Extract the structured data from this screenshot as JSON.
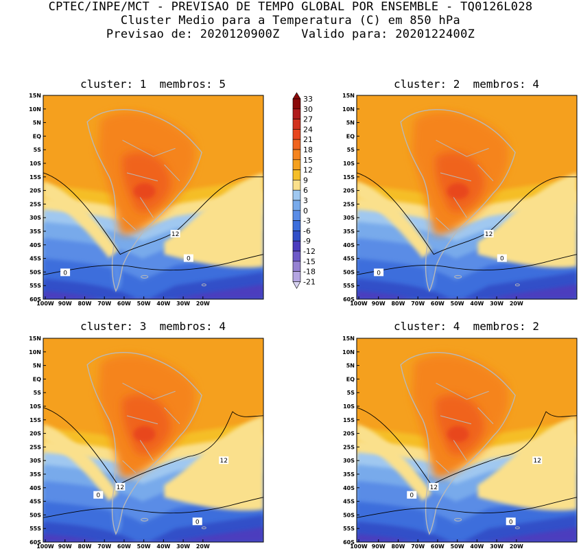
{
  "header": {
    "line1": "CPTEC/INPE/MCT - PREVISAO DE TEMPO GLOBAL POR ENSEMBLE - TQ0126L028",
    "line2": "Cluster Medio para a Temperatura (C) em 850 hPa",
    "line3": "Previsao de: 2020120900Z   Valido para: 2020122400Z"
  },
  "panels": [
    {
      "title": "cluster: 1  membros: 5",
      "contour_labels": [
        "12",
        "0",
        "0"
      ]
    },
    {
      "title": "cluster: 2  membros: 4",
      "contour_labels": [
        "12",
        "0",
        "0"
      ]
    },
    {
      "title": "cluster: 3  membros: 4",
      "contour_labels": [
        "12",
        "12",
        "0",
        "0"
      ]
    },
    {
      "title": "cluster: 4  membros: 2",
      "contour_labels": [
        "12",
        "12",
        "0",
        "0"
      ]
    }
  ],
  "lat_labels": [
    "15N",
    "10N",
    "5N",
    "EQ",
    "5S",
    "10S",
    "15S",
    "20S",
    "25S",
    "30S",
    "35S",
    "40S",
    "45S",
    "50S",
    "55S",
    "60S"
  ],
  "lon_labels": [
    "100W",
    "90W",
    "80W",
    "70W",
    "60W",
    "50W",
    "40W",
    "30W",
    "20W"
  ],
  "colorbar": {
    "labels": [
      "33",
      "30",
      "27",
      "24",
      "21",
      "18",
      "15",
      "12",
      "9",
      "6",
      "3",
      "0",
      "-3",
      "-6",
      "-9",
      "-12",
      "-15",
      "-18",
      "-21"
    ],
    "colors": [
      "#8b0a0a",
      "#b01c1c",
      "#d2321e",
      "#e8461e",
      "#f0641e",
      "#f5841e",
      "#f5a01e",
      "#f5be28",
      "#fae08c",
      "#a0c8f0",
      "#78aaeb",
      "#5a8ce6",
      "#3c6edc",
      "#3250c8",
      "#4b3cbe",
      "#6e5ac8",
      "#9682d2",
      "#b4a5e1",
      "#d7d2f0"
    ]
  }
}
